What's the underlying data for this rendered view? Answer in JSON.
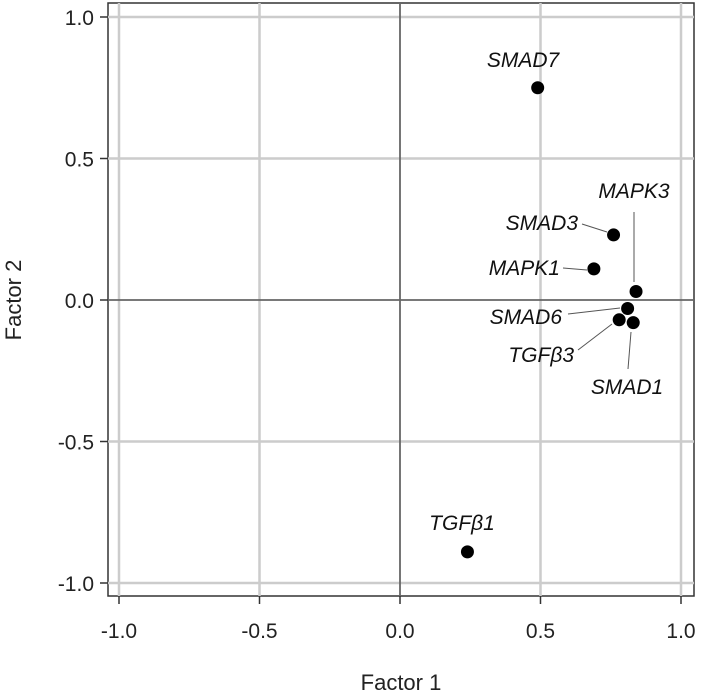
{
  "chart_data": {
    "type": "scatter",
    "title": "",
    "xlabel": "Factor 1",
    "ylabel": "Factor 2",
    "xlim": [
      -1.05,
      1.05
    ],
    "ylim": [
      -1.05,
      1.05
    ],
    "xticks": [
      -1.0,
      -0.5,
      0.0,
      0.5,
      1.0
    ],
    "yticks": [
      -1.0,
      -0.5,
      0.0,
      0.5,
      1.0
    ],
    "xtick_labels": [
      "-1.0",
      "-0.5",
      "0.0",
      "0.5",
      "1.0"
    ],
    "ytick_labels": [
      "-1.0",
      "-0.5",
      "0.0",
      "0.5",
      "1.0"
    ],
    "grid": true,
    "zero_lines": true,
    "marker_color": "#000000",
    "grid_color": "#cccccc",
    "points": [
      {
        "label": "SMAD7",
        "x": 0.49,
        "y": 0.75
      },
      {
        "label": "MAPK3",
        "x": 0.84,
        "y": 0.03
      },
      {
        "label": "SMAD3",
        "x": 0.76,
        "y": 0.23
      },
      {
        "label": "MAPK1",
        "x": 0.69,
        "y": 0.11
      },
      {
        "label": "SMAD6",
        "x": 0.81,
        "y": -0.03
      },
      {
        "label": "TGFβ3",
        "x": 0.78,
        "y": -0.07
      },
      {
        "label": "SMAD1",
        "x": 0.83,
        "y": -0.08
      },
      {
        "label": "TGFβ1",
        "x": 0.24,
        "y": -0.89
      }
    ]
  }
}
